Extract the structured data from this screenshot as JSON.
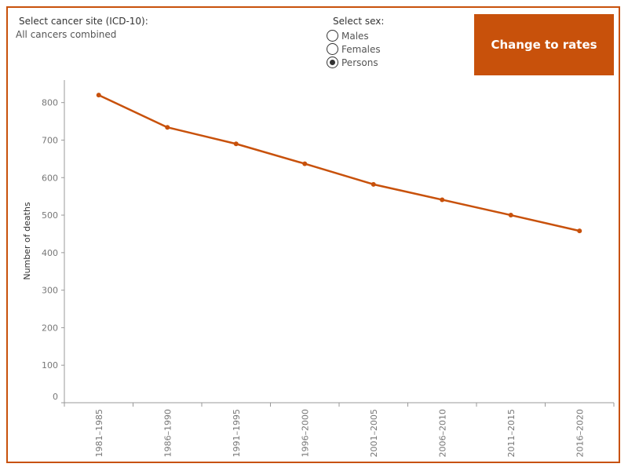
{
  "controls": {
    "cancer_site_label": "Select cancer site (ICD-10):",
    "cancer_site_value": "All cancers combined",
    "sex_label": "Select sex:",
    "sex_options": [
      {
        "label": "Males",
        "checked": false
      },
      {
        "label": "Females",
        "checked": false
      },
      {
        "label": "Persons",
        "checked": true
      }
    ],
    "rates_button_label": "Change to rates"
  },
  "colors": {
    "accent": "#c8510b",
    "axis": "#999999"
  },
  "chart_data": {
    "type": "line",
    "categories": [
      "1981–1985",
      "1986–1990",
      "1991–1995",
      "1996–2000",
      "2001–2005",
      "2006–2010",
      "2011–2015",
      "2016–2020"
    ],
    "series": [
      {
        "values": [
          820,
          734,
          690,
          637,
          582,
          541,
          500,
          458
        ]
      }
    ],
    "xlabel": "",
    "ylabel": "Number of deaths",
    "ylim": [
      0,
      860
    ],
    "yticks": [
      0,
      100,
      200,
      300,
      400,
      500,
      600,
      700,
      800
    ],
    "grid": false,
    "legend": "none"
  }
}
